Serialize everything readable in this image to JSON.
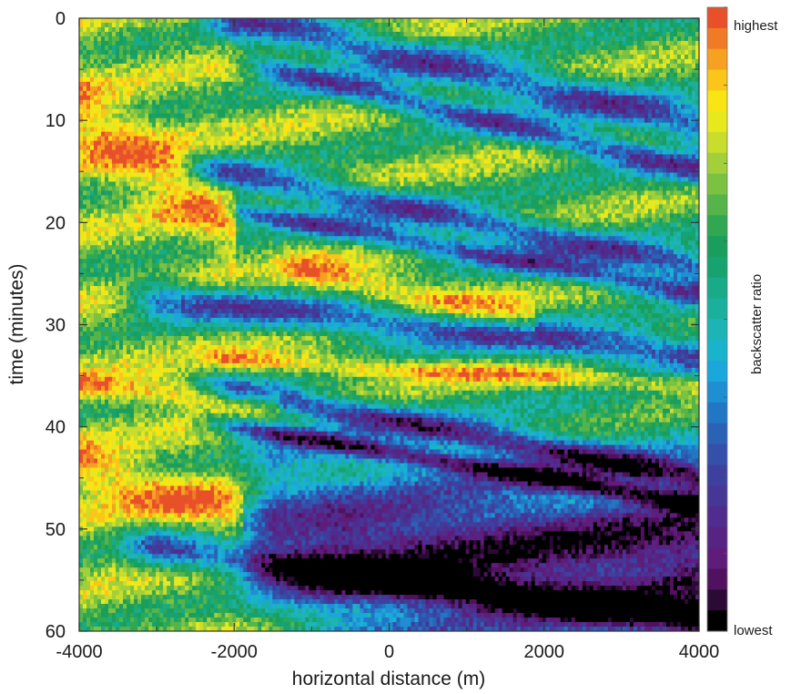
{
  "chart_data": {
    "type": "heatmap",
    "title": "",
    "xlabel": "horizontal distance (m)",
    "ylabel": "time (minutes)",
    "xlim": [
      -4000,
      4000
    ],
    "ylim": [
      0,
      60
    ],
    "y_inverted": true,
    "x_ticks": [
      -4000,
      -2000,
      0,
      2000,
      4000
    ],
    "x_tick_labels": [
      "-4000",
      "-2000",
      "0",
      "2000",
      "4000"
    ],
    "y_ticks": [
      0,
      10,
      20,
      30,
      40,
      50,
      60
    ],
    "y_tick_labels": [
      "0",
      "10",
      "20",
      "30",
      "40",
      "50",
      "60"
    ],
    "colorbar": {
      "label": "backscatter ratio",
      "top_label": "highest",
      "bottom_label": "lowest",
      "colors_high_to_low": [
        "#e8502a",
        "#f07a26",
        "#f6a11f",
        "#fbc51a",
        "#f9e414",
        "#e8e81e",
        "#c8dd2c",
        "#a2cf3a",
        "#7cc242",
        "#55b44a",
        "#30a852",
        "#1a9e5c",
        "#16a370",
        "#19ab88",
        "#1bb09d",
        "#1cb4b4",
        "#1ab3cc",
        "#1aa7dc",
        "#1f8fd4",
        "#2277c4",
        "#2a62b6",
        "#3450aa",
        "#3d409f",
        "#463696",
        "#4f2c8d",
        "#582484",
        "#5f1c7a",
        "#50125f",
        "#2c0a36",
        "#000000"
      ]
    },
    "bands_description": "Diagonal low-backscatter bands descending left-to-right; high values concentrated toward the left side",
    "bands": [
      {
        "type": "low",
        "x0": -2000,
        "t0": 0.0,
        "x1": 4000,
        "t1": 10.5,
        "half_width_min": 2.0
      },
      {
        "type": "low",
        "x0": -1500,
        "t0": 5.0,
        "x1": 4000,
        "t1": 15.0,
        "half_width_min": 1.4
      },
      {
        "type": "low",
        "x0": -2200,
        "t0": 15.0,
        "x1": 4000,
        "t1": 24.5,
        "half_width_min": 1.6
      },
      {
        "type": "low",
        "x0": -1800,
        "t0": 19.0,
        "x1": 4000,
        "t1": 27.0,
        "half_width_min": 1.2
      },
      {
        "type": "low",
        "x0": -3000,
        "t0": 27.5,
        "x1": 4000,
        "t1": 33.0,
        "half_width_min": 1.8
      },
      {
        "type": "low",
        "x0": -2000,
        "t0": 36.5,
        "x1": 4000,
        "t1": 45.0,
        "half_width_min": 1.4
      },
      {
        "type": "low",
        "x0": -2000,
        "t0": 40.0,
        "x1": 4000,
        "t1": 47.5,
        "half_width_min": 1.0
      },
      {
        "type": "low",
        "x0": -1500,
        "t0": 50.0,
        "x1": 4000,
        "t1": 51.0,
        "half_width_min": 9.0
      },
      {
        "type": "low",
        "x0": -3000,
        "t0": 52.0,
        "x1": 4000,
        "t1": 59.0,
        "half_width_min": 1.8
      },
      {
        "type": "high",
        "x0": -4000,
        "t0": 9.5,
        "x1": -2400,
        "t1": 18.0,
        "half_width_min": 4.0
      },
      {
        "type": "high",
        "x0": -4000,
        "t0": 44.0,
        "x1": -2300,
        "t1": 48.0,
        "half_width_min": 2.5
      },
      {
        "type": "high",
        "x0": -2000,
        "t0": 33.5,
        "x1": 4000,
        "t1": 36.0,
        "half_width_min": 1.0
      },
      {
        "type": "high",
        "x0": -1000,
        "t0": 25.0,
        "x1": 1500,
        "t1": 29.0,
        "half_width_min": 1.8
      },
      {
        "type": "high",
        "x0": -4000,
        "t0": 36.0,
        "x1": -1800,
        "t1": 37.5,
        "half_width_min": 1.2
      }
    ]
  }
}
